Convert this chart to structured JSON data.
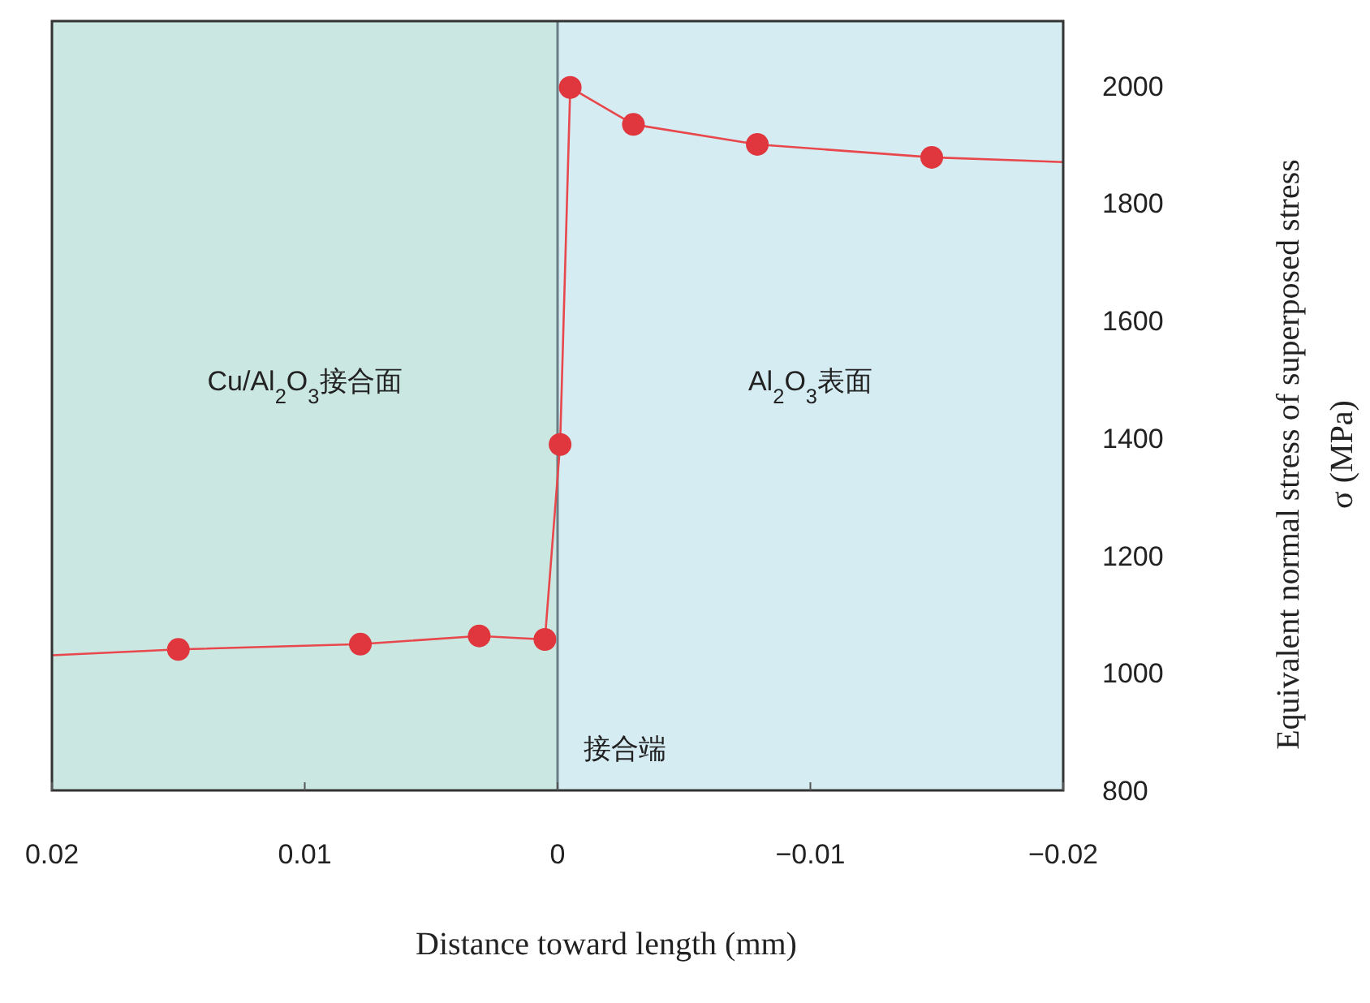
{
  "chart_data": {
    "type": "line",
    "xlabel": "Distance toward length (mm)",
    "ylabel": "Equivalent normal stress of superposed stress σ (MPa)",
    "xlim": [
      0.02,
      -0.02
    ],
    "xticks": [
      0.02,
      0.01,
      0,
      {
        "value": -0.01,
        "label": "−0.01"
      },
      {
        "value": -0.02,
        "label": "−0.02"
      }
    ],
    "ylim": [
      800,
      2110
    ],
    "yticks": [
      800,
      1000,
      1200,
      1400,
      1600,
      1800,
      2000
    ],
    "grid": false,
    "marker": "circle",
    "bands": [
      {
        "axis": "x",
        "from": 0.02,
        "to": 0,
        "label": "Cu/Al$_{2}$O$_{3}$接合面",
        "color": "#cbe7e2"
      },
      {
        "axis": "x",
        "from": 0,
        "to": -0.02,
        "label": "Al$_{2}$O$_{3}$表面",
        "color": "#d5ecf3"
      }
    ],
    "ref_lines": [
      {
        "axis": "x",
        "value": 0,
        "label": "接合端",
        "color": "#6b7d84"
      }
    ],
    "series": [
      {
        "color": "#e8474b",
        "marker": "none",
        "x": [
          0.02,
          0.015,
          0.0078,
          0.0031,
          0.0005,
          -0.0001,
          -0.0005,
          -0.003,
          -0.0079,
          -0.0148,
          -0.02
        ],
        "values": [
          1030,
          1040,
          1049,
          1063,
          1057,
          1389,
          1997,
          1934,
          1900,
          1878,
          1870
        ]
      },
      {
        "type": "scatter",
        "color": "#e0363d",
        "x": [
          0.015,
          0.0078,
          0.0031,
          0.0005,
          -0.0001,
          -0.0005,
          -0.003,
          -0.0079,
          -0.0148
        ],
        "values": [
          1040,
          1049,
          1063,
          1057,
          1389,
          1997,
          1934,
          1900,
          1878
        ]
      }
    ]
  }
}
